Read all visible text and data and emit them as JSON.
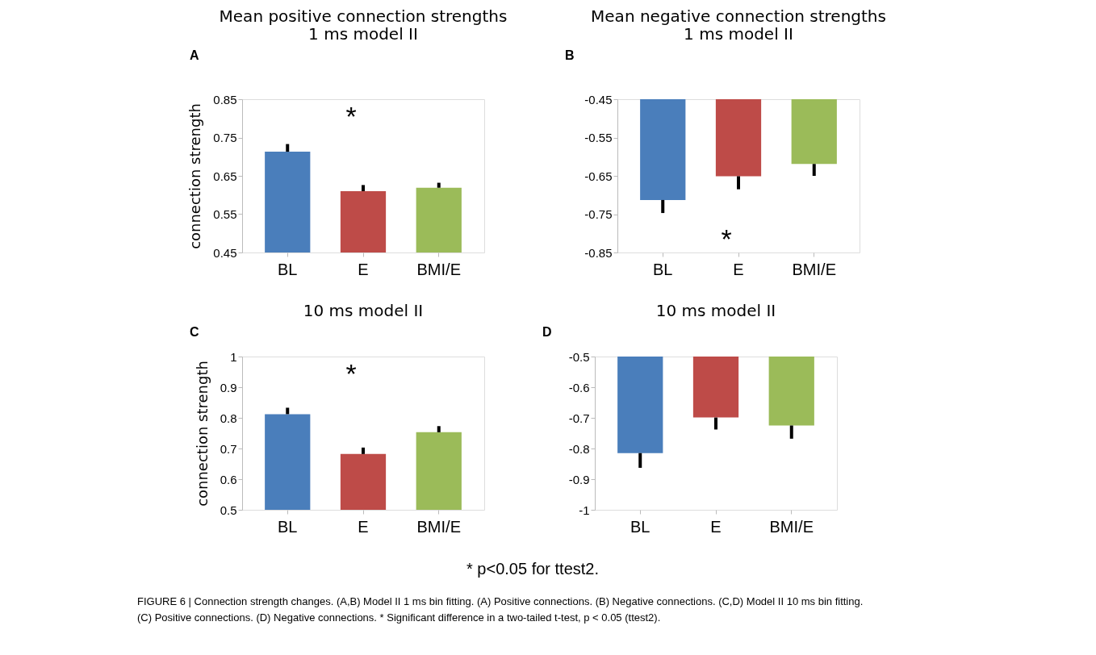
{
  "chart_data": [
    {
      "type": "bar",
      "title": "Mean positive connection strengths",
      "subtitle": "1 ms model II",
      "ylabel": "connection strength",
      "categories": [
        "BL",
        "E",
        "BMI/E"
      ],
      "values": [
        0.713,
        0.61,
        0.619
      ],
      "colors": [
        "#4a7ebb",
        "#be4b48",
        "#9bbb59"
      ],
      "errors": [
        [
          0.713,
          0.733
        ],
        [
          0.61,
          0.626
        ],
        [
          0.619,
          0.632
        ]
      ],
      "ylim": [
        0.45,
        0.85
      ],
      "yticks": [
        0.45,
        0.55,
        0.65,
        0.75,
        0.85
      ],
      "grid": false,
      "annotations": [
        "A",
        "*"
      ]
    },
    {
      "type": "bar",
      "title": "Mean negative connection strengths",
      "subtitle": "1 ms model II",
      "categories": [
        "BL",
        "E",
        "BMI/E"
      ],
      "values": [
        -0.713,
        -0.651,
        -0.619
      ],
      "colors": [
        "#4a7ebb",
        "#be4b48",
        "#9bbb59"
      ],
      "errors": [
        [
          -0.747,
          -0.713
        ],
        [
          -0.685,
          -0.651
        ],
        [
          -0.65,
          -0.619
        ]
      ],
      "ylim": [
        -0.85,
        -0.45
      ],
      "yticks": [
        -0.85,
        -0.75,
        -0.65,
        -0.55,
        -0.45
      ],
      "grid": false,
      "annotations": [
        "B",
        "*"
      ]
    },
    {
      "type": "bar",
      "title": "10 ms model II",
      "ylabel": "connection strength",
      "categories": [
        "BL",
        "E",
        "BMI/E"
      ],
      "values": [
        0.812,
        0.682,
        0.753
      ],
      "colors": [
        "#4a7ebb",
        "#be4b48",
        "#9bbb59"
      ],
      "errors": [
        [
          0.812,
          0.833
        ],
        [
          0.682,
          0.703
        ],
        [
          0.753,
          0.773
        ]
      ],
      "ylim": [
        0.5,
        1
      ],
      "yticks": [
        0.5,
        0.6,
        0.7,
        0.8,
        0.9,
        1
      ],
      "grid": false,
      "annotations": [
        "C",
        "*"
      ]
    },
    {
      "type": "bar",
      "title": "10 ms model II",
      "categories": [
        "BL",
        "E",
        "BMI/E"
      ],
      "values": [
        -0.815,
        -0.699,
        -0.725
      ],
      "colors": [
        "#4a7ebb",
        "#be4b48",
        "#9bbb59"
      ],
      "errors": [
        [
          -0.863,
          -0.815
        ],
        [
          -0.738,
          -0.699
        ],
        [
          -0.768,
          -0.725
        ]
      ],
      "ylim": [
        -1,
        -0.5
      ],
      "yticks": [
        -1,
        -0.9,
        -0.8,
        -0.7,
        -0.6,
        -0.5
      ],
      "grid": false,
      "annotations": [
        "D",
        "* p<0.05 for ttest2.",
        "FIGURE 6 | Connection strength changes. (A,B) Model II 1 ms bin fitting. (A) Positive connections. (B) Negative connections. (C,D) Model II 10 ms bin fitting. (C) Positive connections. (D) Negative connections. * Significant difference in a two-tailed t-test, p < 0.05 (ttest2)."
      ]
    }
  ]
}
